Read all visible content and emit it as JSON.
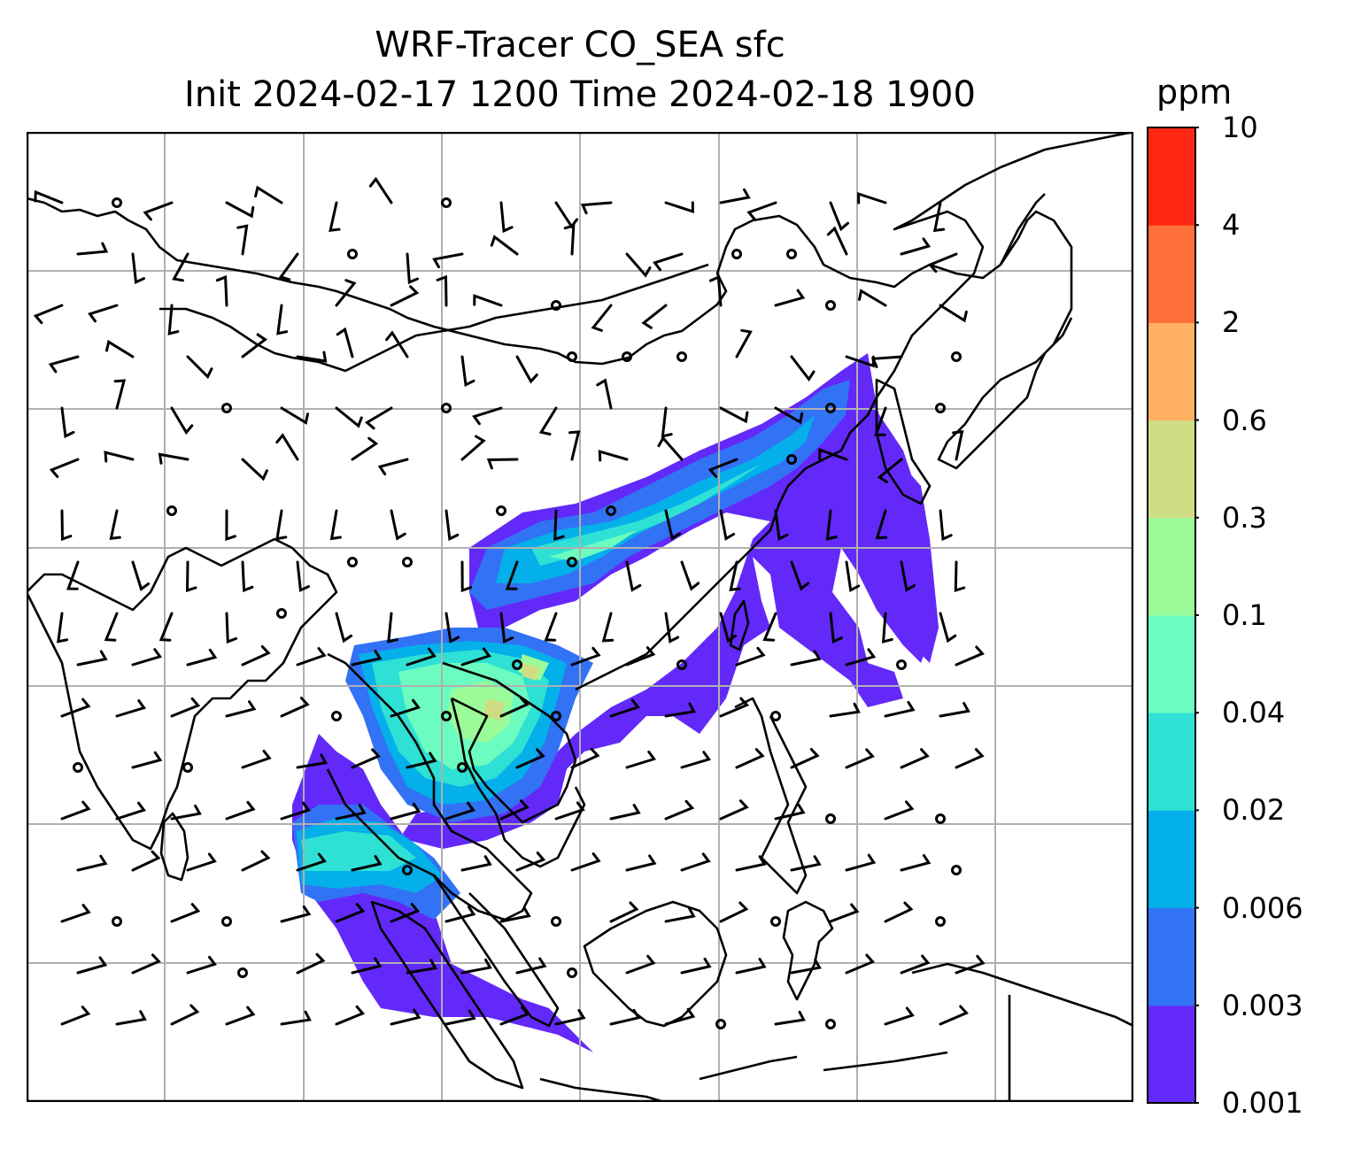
{
  "title_line1": "WRF-Tracer CO_SEA sfc",
  "title_line2": "Init 2024-02-17 1200 Time 2024-02-18 1900",
  "colorbar": {
    "unit": "ppm",
    "levels": [
      "0.001",
      "0.003",
      "0.006",
      "0.02",
      "0.04",
      "0.1",
      "0.3",
      "0.6",
      "2",
      "4",
      "10"
    ],
    "colors": [
      "#6229f9",
      "#3272f5",
      "#04b0e9",
      "#2fe0d4",
      "#6cfcc0",
      "#9bfb98",
      "#cedd84",
      "#ffb060",
      "#ff6f3a",
      "#fe2714"
    ]
  },
  "map": {
    "gridlines": true,
    "coastline_color": "#000000",
    "grid_color": "#b0b0b0"
  }
}
